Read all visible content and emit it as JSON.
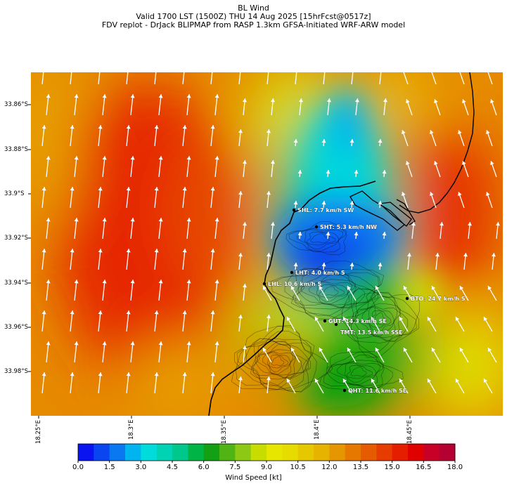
{
  "header": {
    "line1": "BL Wind",
    "line2": "Valid 1700 LST (1500Z) THU 14 Aug 2025 [15hrFcst@0517z]",
    "line3": "FDV replot - DrJack BLIPMAP from RASP 1.3km GFSA-Initiated WRF-ARW model"
  },
  "axes": {
    "lat_labels": [
      "33.86°S",
      "33.88°S",
      "33.9°S",
      "33.92°S",
      "33.94°S",
      "33.96°S",
      "33.98°S"
    ],
    "lon_labels": [
      "18.25°E",
      "18.3°E",
      "18.35°E",
      "18.4°E",
      "18.45°E"
    ]
  },
  "stations": [
    {
      "code": "SHL",
      "label": "SHL: 7.7 km/h SW",
      "speed_kmh": 7.7,
      "dir": "SW"
    },
    {
      "code": "SHT",
      "label": "SHT: 5.3 km/h NW",
      "speed_kmh": 5.3,
      "dir": "NW"
    },
    {
      "code": "LHT",
      "label": "LHT: 4.0 km/h S",
      "speed_kmh": 4.0,
      "dir": "S"
    },
    {
      "code": "LHL",
      "label": "LHL: 10.6 km/h S",
      "speed_kmh": 10.6,
      "dir": "S"
    },
    {
      "code": "BTO",
      "label": "BTO: 24.7 km/h S",
      "speed_kmh": 24.7,
      "dir": "S"
    },
    {
      "code": "GUT",
      "label": "GUT: 14.3 km/h SE",
      "speed_kmh": 14.3,
      "dir": "SE"
    },
    {
      "code": "TMT",
      "label": "TMT: 13.5 km/h SSE",
      "speed_kmh": 13.5,
      "dir": "SSE"
    },
    {
      "code": "OHT",
      "label": "OHT: 11.6 km/h SE",
      "speed_kmh": 11.6,
      "dir": "SE"
    }
  ],
  "colorbar": {
    "label": "Wind Speed [kt]",
    "ticks": [
      "0.0",
      "1.5",
      "3.0",
      "4.5",
      "6.0",
      "7.5",
      "9.0",
      "10.5",
      "12.0",
      "13.5",
      "15.0",
      "16.5",
      "18.0"
    ],
    "colors": [
      "#0a14f0",
      "#0a46f0",
      "#0a78f0",
      "#00b4f0",
      "#00dcdc",
      "#00d2b4",
      "#00c88c",
      "#00b446",
      "#14a014",
      "#50b414",
      "#8cc814",
      "#c8dc00",
      "#e6e600",
      "#e6dc00",
      "#e6c800",
      "#e6b400",
      "#e69600",
      "#e67800",
      "#e65a00",
      "#e63c00",
      "#e61e00",
      "#e00000",
      "#c80028",
      "#b40032"
    ]
  }
}
